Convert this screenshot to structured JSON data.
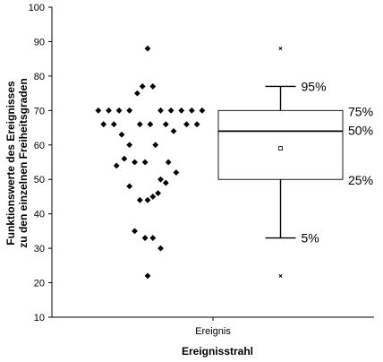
{
  "chart_data": {
    "type": "box+strip",
    "title": "",
    "xlabel": "Ereignisstrahl",
    "ylabel_line1": "Funktionswerte des Ereignisses",
    "ylabel_line2": "zu den einzelnen Freiheitsgraden",
    "categories": [
      "Ereignis"
    ],
    "ylim": [
      10,
      100
    ],
    "yticks": [
      10,
      20,
      30,
      40,
      50,
      60,
      70,
      80,
      90,
      100
    ],
    "grid": false,
    "strip_points": [
      {
        "x": 0.0,
        "y": 88
      },
      {
        "x": -0.1,
        "y": 77
      },
      {
        "x": 0.1,
        "y": 77
      },
      {
        "x": -0.2,
        "y": 75
      },
      {
        "x": -0.95,
        "y": 70
      },
      {
        "x": -0.75,
        "y": 70
      },
      {
        "x": -0.55,
        "y": 70
      },
      {
        "x": -0.35,
        "y": 70
      },
      {
        "x": 0.25,
        "y": 70
      },
      {
        "x": 0.45,
        "y": 70
      },
      {
        "x": 0.65,
        "y": 70
      },
      {
        "x": 0.85,
        "y": 70
      },
      {
        "x": 1.05,
        "y": 70
      },
      {
        "x": -0.85,
        "y": 66
      },
      {
        "x": -0.65,
        "y": 66
      },
      {
        "x": -0.15,
        "y": 66
      },
      {
        "x": 0.05,
        "y": 66
      },
      {
        "x": 0.35,
        "y": 66
      },
      {
        "x": 0.75,
        "y": 66
      },
      {
        "x": 0.95,
        "y": 66
      },
      {
        "x": 0.5,
        "y": 64
      },
      {
        "x": -0.5,
        "y": 63
      },
      {
        "x": -0.35,
        "y": 60
      },
      {
        "x": 0.15,
        "y": 60
      },
      {
        "x": -0.45,
        "y": 56
      },
      {
        "x": -0.6,
        "y": 54
      },
      {
        "x": -0.25,
        "y": 55
      },
      {
        "x": -0.05,
        "y": 55
      },
      {
        "x": 0.4,
        "y": 55
      },
      {
        "x": 0.55,
        "y": 52
      },
      {
        "x": 0.25,
        "y": 50
      },
      {
        "x": 0.35,
        "y": 49
      },
      {
        "x": -0.35,
        "y": 48
      },
      {
        "x": 0.2,
        "y": 46
      },
      {
        "x": 0.1,
        "y": 45
      },
      {
        "x": -0.15,
        "y": 44
      },
      {
        "x": 0.0,
        "y": 44
      },
      {
        "x": -0.25,
        "y": 35
      },
      {
        "x": -0.05,
        "y": 33
      },
      {
        "x": 0.1,
        "y": 33
      },
      {
        "x": 0.25,
        "y": 30
      },
      {
        "x": 0.0,
        "y": 22
      }
    ],
    "box": {
      "p5": 33,
      "p25": 50,
      "p50": 64,
      "p75": 70,
      "p95": 77,
      "mean": 59,
      "outliers": [
        88,
        22
      ]
    },
    "percent_labels": {
      "p95": "95%",
      "p75": "75%",
      "p50": "50%",
      "p25": "25%",
      "p5": "5%"
    }
  }
}
